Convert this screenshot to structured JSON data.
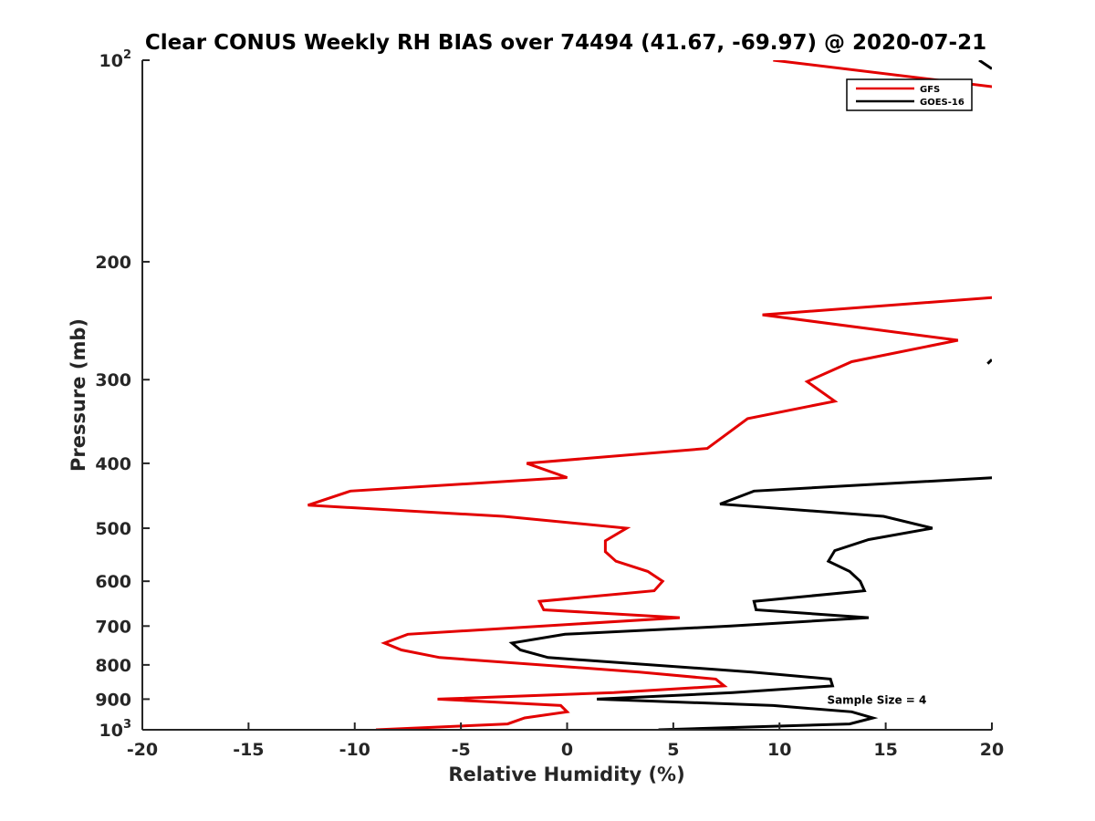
{
  "chart_data": {
    "type": "line",
    "title": "Clear CONUS Weekly RH BIAS over 74494 (41.67, -69.97) @ 2020-07-21",
    "xlabel": "Relative Humidity (%)",
    "ylabel": "Pressure (mb)",
    "xlim": [
      -20,
      20
    ],
    "ylim": [
      100,
      1000
    ],
    "yscale": "log",
    "y_reversed": true,
    "grid": false,
    "legend_position": "top-right",
    "x_ticks": [
      {
        "value": -20,
        "label": "-20"
      },
      {
        "value": -15,
        "label": "-15"
      },
      {
        "value": -10,
        "label": "-10"
      },
      {
        "value": -5,
        "label": "-5"
      },
      {
        "value": 0,
        "label": "0"
      },
      {
        "value": 5,
        "label": "5"
      },
      {
        "value": 10,
        "label": "10"
      },
      {
        "value": 15,
        "label": "15"
      },
      {
        "value": 20,
        "label": "20"
      }
    ],
    "y_ticks": [
      {
        "value": 100,
        "label": "10",
        "exp": "2"
      },
      {
        "value": 200,
        "label": "200"
      },
      {
        "value": 300,
        "label": "300"
      },
      {
        "value": 400,
        "label": "400"
      },
      {
        "value": 500,
        "label": "500"
      },
      {
        "value": 600,
        "label": "600"
      },
      {
        "value": 700,
        "label": "700"
      },
      {
        "value": 800,
        "label": "800"
      },
      {
        "value": 900,
        "label": "900"
      },
      {
        "value": 1000,
        "label": "10",
        "exp": "3"
      }
    ],
    "series": [
      {
        "name": "GFS",
        "color": "#e30000",
        "points": [
          [
            9.7,
            100
          ],
          [
            20.5,
            110
          ],
          [
            21,
            225
          ],
          [
            9.2,
            240
          ],
          [
            18.4,
            262
          ],
          [
            13.4,
            282
          ],
          [
            11.3,
            302
          ],
          [
            12.6,
            323
          ],
          [
            8.5,
            343
          ],
          [
            7.5,
            362
          ],
          [
            6.6,
            380
          ],
          [
            -1.9,
            400
          ],
          [
            0,
            420
          ],
          [
            -10.2,
            440
          ],
          [
            -12.2,
            462
          ],
          [
            -3,
            480
          ],
          [
            2.8,
            500
          ],
          [
            1.8,
            522
          ],
          [
            1.8,
            542
          ],
          [
            2.3,
            560
          ],
          [
            3.8,
            580
          ],
          [
            4.5,
            600
          ],
          [
            4.1,
            620
          ],
          [
            -1.3,
            643
          ],
          [
            -1.1,
            662
          ],
          [
            5.3,
            680
          ],
          [
            -7.5,
            720
          ],
          [
            -8.6,
            742
          ],
          [
            -7.8,
            760
          ],
          [
            -6,
            780
          ],
          [
            3.4,
            820
          ],
          [
            7,
            840
          ],
          [
            7.4,
            860
          ],
          [
            2.2,
            880
          ],
          [
            -6.1,
            900
          ],
          [
            -0.3,
            920
          ],
          [
            0,
            940
          ],
          [
            -2,
            960
          ],
          [
            -2.8,
            980
          ],
          [
            -9,
            1000
          ]
        ]
      },
      {
        "name": "GOES-16",
        "color": "#000000",
        "points": [
          [
            20,
            280
          ],
          [
            19.8,
            284
          ],
          [
            20.2,
            420
          ],
          [
            8.8,
            440
          ],
          [
            7.2,
            460
          ],
          [
            14.9,
            480
          ],
          [
            17.2,
            500
          ],
          [
            14.2,
            520
          ],
          [
            12.6,
            540
          ],
          [
            12.3,
            560
          ],
          [
            13.3,
            580
          ],
          [
            13.8,
            600
          ],
          [
            14,
            620
          ],
          [
            8.8,
            643
          ],
          [
            8.9,
            662
          ],
          [
            14.2,
            680
          ],
          [
            7.7,
            700
          ],
          [
            -0.1,
            720
          ],
          [
            -2.6,
            742
          ],
          [
            -2.2,
            760
          ],
          [
            -0.9,
            780
          ],
          [
            8.7,
            820
          ],
          [
            12.4,
            840
          ],
          [
            12.5,
            860
          ],
          [
            7.8,
            880
          ],
          [
            1.4,
            900
          ],
          [
            9.7,
            920
          ],
          [
            13.4,
            940
          ],
          [
            14.4,
            960
          ],
          [
            13.3,
            980
          ],
          [
            4.3,
            1000
          ]
        ]
      }
    ],
    "annotations": [
      {
        "text": "Sample Size = 4",
        "x": 12.5,
        "y": 900
      }
    ],
    "extra_marks": [
      {
        "series": "GOES-16",
        "points": [
          [
            19.4,
            100
          ],
          [
            20,
            103
          ]
        ]
      }
    ]
  }
}
